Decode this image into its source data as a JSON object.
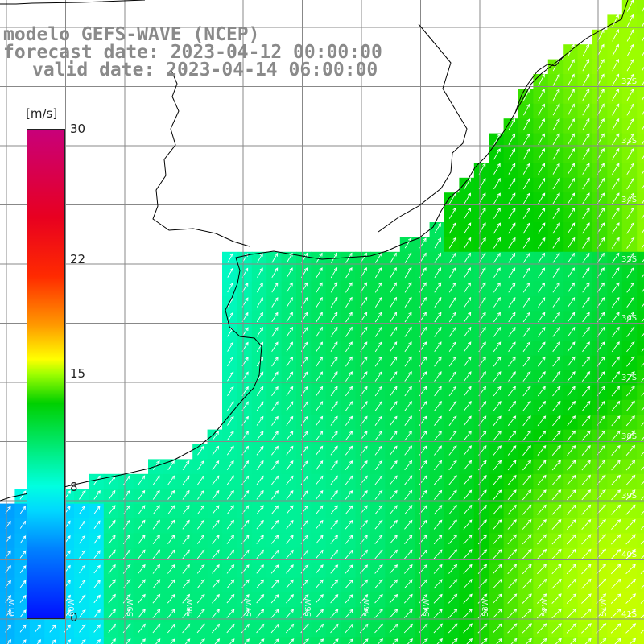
{
  "title": {
    "line1": "modelo GEFS-WAVE (NCEP)",
    "line2": "forecast date: 2023-04-12 00:00:00",
    "line3": "valid date: 2023-04-14 06:00:00"
  },
  "colorbar": {
    "unit": "[m/s]",
    "ticks": [
      {
        "label": "30",
        "value": 30
      },
      {
        "label": "22",
        "value": 22
      },
      {
        "label": "15",
        "value": 15
      },
      {
        "label": "8",
        "value": 8
      },
      {
        "label": "0",
        "value": 0
      }
    ],
    "range": [
      0,
      30
    ],
    "colors": [
      "#0010ff",
      "#0080ff",
      "#00d8ff",
      "#00ffe0",
      "#00f090",
      "#00d000",
      "#a0ff00",
      "#ffff00",
      "#ff9900",
      "#ff2a00",
      "#e80020",
      "#c8007a"
    ]
  },
  "map": {
    "land_color": "#ffffff",
    "coast_color": "#000000",
    "grid_color": "#888888",
    "arrow_color": "#ffffff",
    "lat_labels": [
      "32S",
      "33S",
      "34S",
      "35S",
      "36S",
      "37S",
      "38S",
      "39S",
      "40S",
      "41S"
    ],
    "lon_labels": [
      "61W",
      "60W",
      "59W",
      "58W",
      "57W",
      "56W",
      "55W",
      "54W",
      "53W",
      "52W",
      "51W"
    ]
  }
}
